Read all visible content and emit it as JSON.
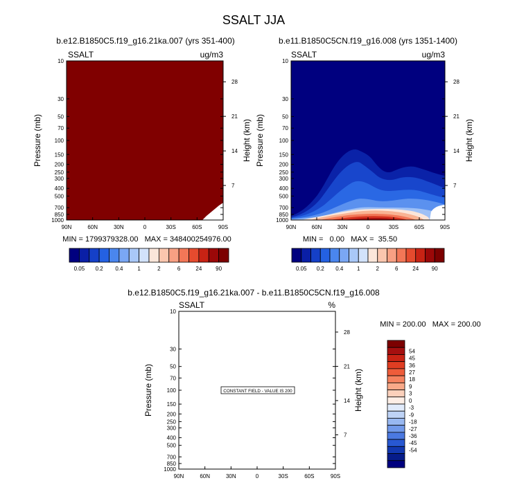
{
  "chart_data": {
    "title": "SSALT JJA",
    "panels": [
      {
        "id": "left",
        "type": "heatmap",
        "title": "b.e12.B1850C5.f19_g16.21ka.007 (yrs 351-400)",
        "field_label": "SSALT",
        "units": "ug/m3",
        "ylabel": "Pressure (mb)",
        "ylabel_right": "Height (km)",
        "x_ticks": [
          "90N",
          "60N",
          "30N",
          "0",
          "30S",
          "60S",
          "90S"
        ],
        "y_ticks": [
          "10",
          "30",
          "50",
          "70",
          "100",
          "150",
          "200",
          "250",
          "300",
          "400",
          "500",
          "700",
          "850",
          "1000"
        ],
        "height_ticks": [
          "28",
          "21",
          "14",
          "7"
        ],
        "min_max_text": "MIN = 1799379328.00   MAX = 348400254976.00",
        "note": ""
      },
      {
        "id": "right",
        "type": "heatmap",
        "title": "b.e11.B1850C5CN.f19_g16.008 (yrs 1351-1400)",
        "field_label": "SSALT",
        "units": "ug/m3",
        "ylabel": "Pressure (mb)",
        "ylabel_right": "Height (km)",
        "x_ticks": [
          "90N",
          "60N",
          "30N",
          "0",
          "30S",
          "60S",
          "90S"
        ],
        "y_ticks": [
          "10",
          "30",
          "50",
          "70",
          "100",
          "150",
          "200",
          "250",
          "300",
          "400",
          "500",
          "700",
          "850",
          "1000"
        ],
        "height_ticks": [
          "28",
          "21",
          "14",
          "7"
        ],
        "min_max_text": "MIN =   0.00   MAX =  35.50",
        "note": ""
      },
      {
        "id": "diff",
        "type": "heatmap",
        "title": "b.e12.B1850C5.f19_g16.21ka.007 - b.e11.B1850C5CN.f19_g16.008",
        "field_label": "SSALT",
        "units": "%",
        "ylabel": "Pressure (mb)",
        "ylabel_right": "Height (km)",
        "x_ticks": [
          "90N",
          "60N",
          "30N",
          "0",
          "30S",
          "60S",
          "90S"
        ],
        "y_ticks": [
          "10",
          "30",
          "50",
          "70",
          "100",
          "150",
          "200",
          "250",
          "300",
          "400",
          "500",
          "700",
          "850",
          "1000"
        ],
        "height_ticks": [
          "28",
          "21",
          "14",
          "7"
        ],
        "min_max_text": "MIN = 200.00   MAX = 200.00",
        "note": "CONSTANT FIELD - VALUE IS 200"
      }
    ],
    "colorbar_abs": {
      "labels": [
        "0.05",
        "0.2",
        "0.4",
        "1",
        "2",
        "6",
        "24",
        "90"
      ],
      "colors": [
        "#00007f",
        "#0a1fa6",
        "#1540c8",
        "#2461e2",
        "#4a86ee",
        "#7aa7f4",
        "#a9c8f8",
        "#d2e2fb",
        "#fbe6da",
        "#fbc6ae",
        "#f8a083",
        "#f27757",
        "#e54b2e",
        "#c82314",
        "#9b0808",
        "#7c0000"
      ]
    },
    "colorbar_diff": {
      "labels": [
        "54",
        "45",
        "36",
        "27",
        "18",
        "9",
        "3",
        "0",
        "-3",
        "-9",
        "-18",
        "-27",
        "-36",
        "-45",
        "-54"
      ],
      "colors": [
        "#7c0000",
        "#a50f0f",
        "#c92314",
        "#e03d22",
        "#ee5c3a",
        "#f5825f",
        "#f9a989",
        "#fbd0bb",
        "#fdeee6",
        "#e1ebfb",
        "#bed3f6",
        "#98b8f1",
        "#7199ea",
        "#4b79e1",
        "#2858d2",
        "#1238b0",
        "#061c8a",
        "#00007f"
      ]
    }
  }
}
